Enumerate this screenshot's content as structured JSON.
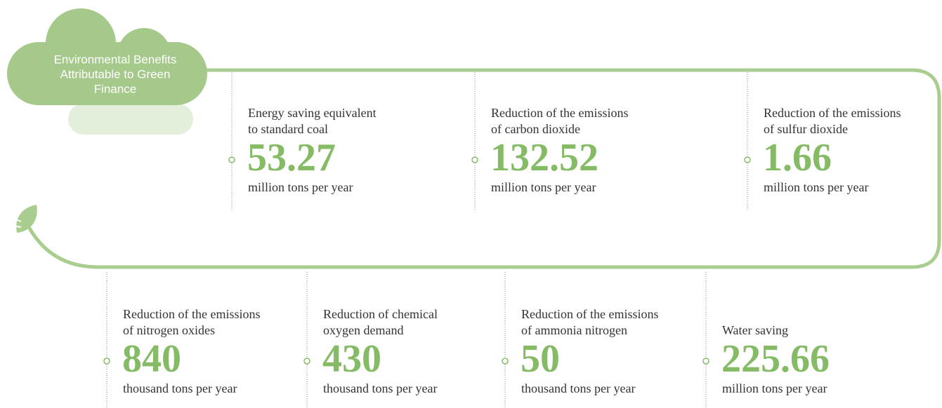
{
  "title": [
    "Environmental Benefits",
    "Attributable to Green",
    "Finance"
  ],
  "items": [
    {
      "label": [
        "Energy saving equivalent",
        "to standard coal"
      ],
      "value": "53.27",
      "unit": "million tons per year"
    },
    {
      "label": [
        "Reduction of the emissions",
        "of carbon dioxide"
      ],
      "value": "132.52",
      "unit": "million tons per year"
    },
    {
      "label": [
        "Reduction of the emissions",
        "of sulfur dioxide"
      ],
      "value": "1.66",
      "unit": "million tons per year"
    },
    {
      "label": [
        "Reduction of the emissions",
        "of nitrogen oxides"
      ],
      "value": "840",
      "unit": "thousand tons per year"
    },
    {
      "label": [
        "Reduction of chemical",
        "oxygen demand"
      ],
      "value": "430",
      "unit": "thousand tons per year"
    },
    {
      "label": [
        "Reduction of the emissions",
        "of ammonia nitrogen"
      ],
      "value": "50",
      "unit": "thousand tons per year"
    },
    {
      "label": [
        "Water saving"
      ],
      "value": "225.66",
      "unit": "million tons per year"
    }
  ]
}
